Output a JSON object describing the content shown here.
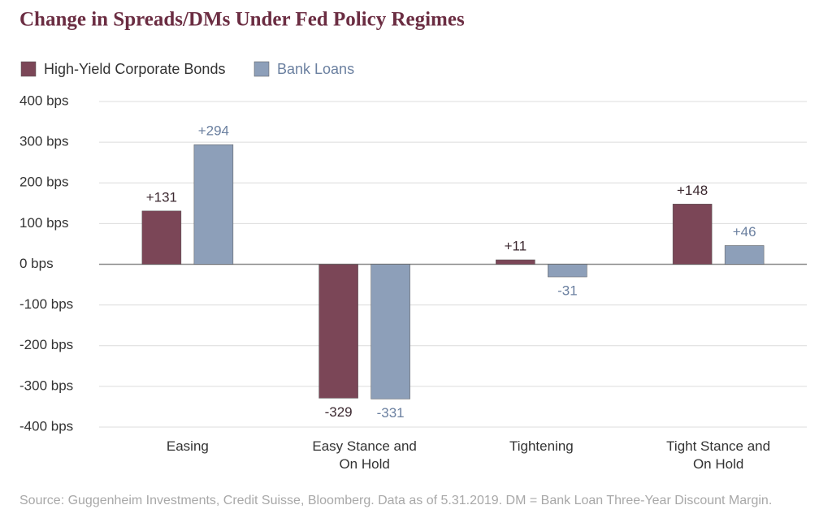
{
  "chart_data": {
    "type": "bar",
    "title": "Change in Spreads/DMs Under Fed Policy Regimes",
    "categories": [
      "Easing",
      "Easy Stance and On Hold",
      "Tightening",
      "Tight Stance and On Hold"
    ],
    "series": [
      {
        "name": "High-Yield Corporate Bonds",
        "color": "#7b4657",
        "label_color": "#3d2a31",
        "values": [
          131,
          -329,
          11,
          148
        ],
        "value_labels": [
          "+131",
          "-329",
          "+11",
          "+148"
        ]
      },
      {
        "name": "Bank Loans",
        "color": "#8d9fb9",
        "label_color": "#6b80a0",
        "values": [
          294,
          -331,
          -31,
          46
        ],
        "value_labels": [
          "+294",
          "-331",
          "-31",
          "+46"
        ]
      }
    ],
    "ylim": [
      -400,
      400
    ],
    "yticks": [
      {
        "value": -400,
        "label": "-400 bps"
      },
      {
        "value": -300,
        "label": "-300 bps"
      },
      {
        "value": -200,
        "label": "-200 bps"
      },
      {
        "value": -100,
        "label": "-100 bps"
      },
      {
        "value": 0,
        "label": "0 bps"
      },
      {
        "value": 100,
        "label": "100 bps"
      },
      {
        "value": 200,
        "label": "200 bps"
      },
      {
        "value": 300,
        "label": "300 bps"
      },
      {
        "value": 400,
        "label": "400 bps"
      }
    ],
    "grid": true,
    "legend": "top-left",
    "source": "Source: Guggenheim Investments, Credit Suisse, Bloomberg. Data as of 5.31.2019. DM = Bank Loan Three-Year Discount Margin."
  }
}
